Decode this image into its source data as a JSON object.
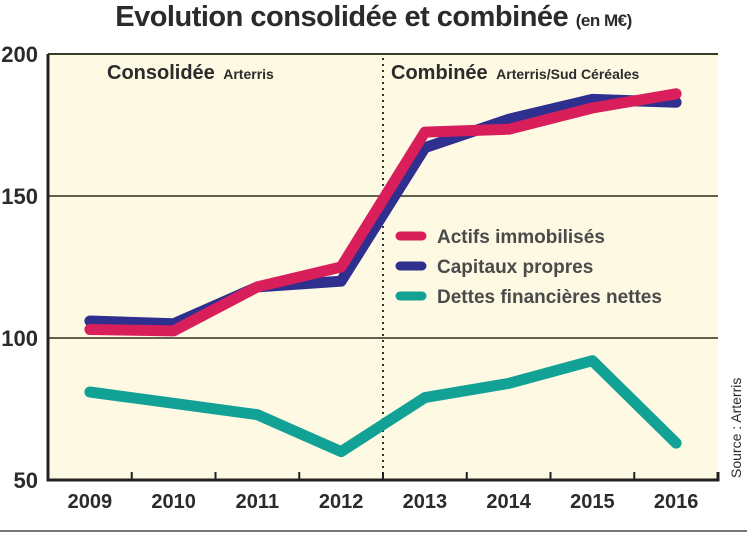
{
  "chart_data": {
    "type": "line",
    "title": "Evolution consolidée et combinée",
    "title_unit": "(en M€)",
    "x": [
      "2009",
      "2010",
      "2011",
      "2012",
      "2013",
      "2014",
      "2015",
      "2016"
    ],
    "ylim": [
      50,
      200
    ],
    "yticks": [
      "200",
      "150",
      "100",
      "50"
    ],
    "ytick_values": [
      200,
      150,
      100,
      50
    ],
    "grid": "horizontal",
    "series": [
      {
        "name": "Actifs immobilisés",
        "color": "#d81f5c",
        "values": [
          103,
          102.5,
          118,
          125,
          172.5,
          173.5,
          181,
          186
        ]
      },
      {
        "name": "Capitaux propres",
        "color": "#2e2f8e",
        "values": [
          106,
          105,
          118,
          120,
          167,
          177,
          184,
          183
        ]
      },
      {
        "name": "Dettes financières nettes",
        "color": "#12a195",
        "values": [
          81,
          77,
          73,
          60,
          79,
          84,
          92,
          63
        ]
      }
    ],
    "sections": [
      {
        "label": "Consolidée",
        "sublabel": "Arterris"
      },
      {
        "label": "Combinée",
        "sublabel": "Arterris/Sud Céréales"
      }
    ],
    "section_divider_between": [
      "2012",
      "2013"
    ],
    "legend_placement": "center-right",
    "source": "Source : Arterris",
    "background_color": "#fdf9e3"
  }
}
